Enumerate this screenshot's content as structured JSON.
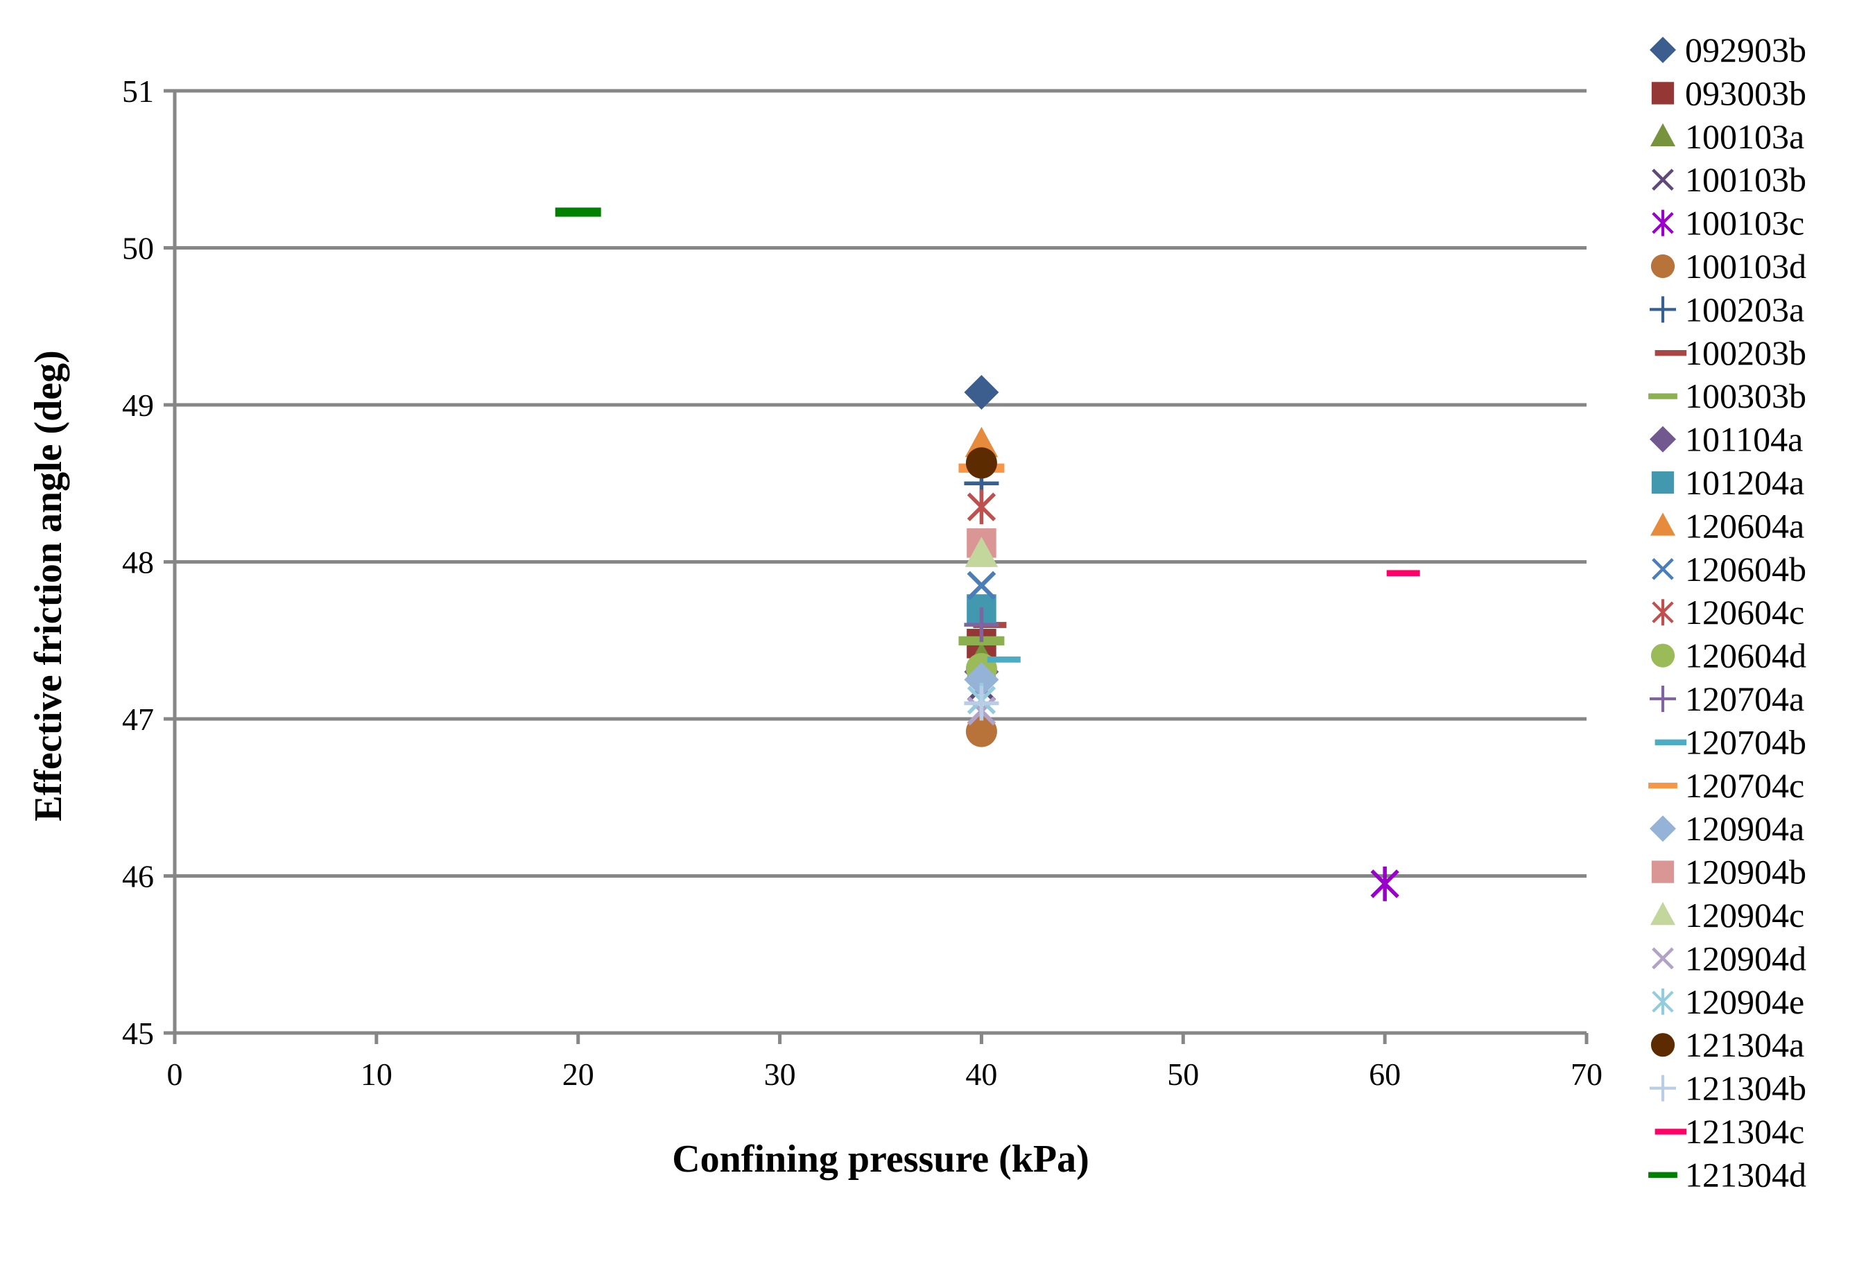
{
  "chart_data": {
    "type": "scatter",
    "title": "",
    "xlabel": "Confining  pressure (kPa)",
    "ylabel": "Effective friction angle (deg)",
    "xlim": [
      0,
      70
    ],
    "ylim": [
      45,
      51
    ],
    "xticks": [
      0,
      10,
      20,
      30,
      40,
      50,
      60,
      70
    ],
    "yticks": [
      45,
      46,
      47,
      48,
      49,
      50,
      51
    ],
    "grid": "horizontal",
    "legend_position": "right",
    "series": [
      {
        "name": "092903b",
        "marker": "diamond",
        "color": "#3B5E8F",
        "points": [
          [
            40,
            49.08
          ]
        ]
      },
      {
        "name": "093003b",
        "marker": "square",
        "color": "#953735",
        "points": [
          [
            40,
            47.48
          ]
        ]
      },
      {
        "name": "100103a",
        "marker": "triangle",
        "color": "#77933C",
        "points": [
          [
            40,
            47.38
          ]
        ]
      },
      {
        "name": "100103b",
        "marker": "x",
        "color": "#5F497A",
        "points": [
          [
            40,
            47.2
          ]
        ]
      },
      {
        "name": "100103c",
        "marker": "star",
        "color": "#9900CC",
        "points": [
          [
            60,
            45.95
          ]
        ]
      },
      {
        "name": "100103d",
        "marker": "circle",
        "color": "#B8733A",
        "points": [
          [
            40,
            46.92
          ]
        ]
      },
      {
        "name": "100203a",
        "marker": "plus",
        "color": "#366092",
        "points": [
          [
            40,
            48.5
          ]
        ]
      },
      {
        "name": "100203b",
        "marker": "dash",
        "color": "#AA4643",
        "points": [
          [
            40,
            47.6
          ]
        ]
      },
      {
        "name": "100303b",
        "marker": "line",
        "color": "#8CB04F",
        "points": [
          [
            40,
            47.5
          ]
        ]
      },
      {
        "name": "101104a",
        "marker": "diamond",
        "color": "#71588F",
        "points": [
          [
            40,
            47.3
          ]
        ]
      },
      {
        "name": "101204a",
        "marker": "square",
        "color": "#4198AF",
        "points": [
          [
            40,
            47.7
          ]
        ]
      },
      {
        "name": "120604a",
        "marker": "triangle",
        "color": "#E68A3C",
        "points": [
          [
            40,
            48.75
          ]
        ]
      },
      {
        "name": "120604b",
        "marker": "x",
        "color": "#4A7EBB",
        "points": [
          [
            40,
            47.85
          ]
        ]
      },
      {
        "name": "120604c",
        "marker": "star",
        "color": "#C0504D",
        "points": [
          [
            40,
            48.35
          ]
        ]
      },
      {
        "name": "120604d",
        "marker": "circle",
        "color": "#9BBB59",
        "points": [
          [
            40,
            47.32
          ]
        ]
      },
      {
        "name": "120704a",
        "marker": "plus",
        "color": "#8064A2",
        "points": [
          [
            40,
            47.6
          ]
        ]
      },
      {
        "name": "120704b",
        "marker": "dash",
        "color": "#4BACC6",
        "points": [
          [
            40.7,
            47.38
          ]
        ]
      },
      {
        "name": "120704c",
        "marker": "line",
        "color": "#F79646",
        "points": [
          [
            40,
            48.6
          ]
        ]
      },
      {
        "name": "120904a",
        "marker": "diamond",
        "color": "#95B3D7",
        "points": [
          [
            40,
            47.25
          ]
        ]
      },
      {
        "name": "120904b",
        "marker": "square",
        "color": "#D99694",
        "points": [
          [
            40,
            48.12
          ]
        ]
      },
      {
        "name": "120904c",
        "marker": "triangle",
        "color": "#C3D69B",
        "points": [
          [
            40,
            48.05
          ]
        ]
      },
      {
        "name": "120904d",
        "marker": "x",
        "color": "#B2A2C7",
        "points": [
          [
            40,
            47.05
          ]
        ]
      },
      {
        "name": "120904e",
        "marker": "star",
        "color": "#93CDDD",
        "points": [
          [
            40,
            47.12
          ]
        ]
      },
      {
        "name": "121304a",
        "marker": "circle",
        "color": "#5C2C00",
        "points": [
          [
            40,
            48.63
          ]
        ]
      },
      {
        "name": "121304b",
        "marker": "plus",
        "color": "#B9CDE5",
        "points": [
          [
            40,
            47.1
          ]
        ]
      },
      {
        "name": "121304c",
        "marker": "dash",
        "color": "#FF0066",
        "points": [
          [
            60.5,
            47.93
          ]
        ]
      },
      {
        "name": "121304d",
        "marker": "line",
        "color": "#008000",
        "points": [
          [
            20,
            50.23
          ]
        ]
      }
    ]
  }
}
